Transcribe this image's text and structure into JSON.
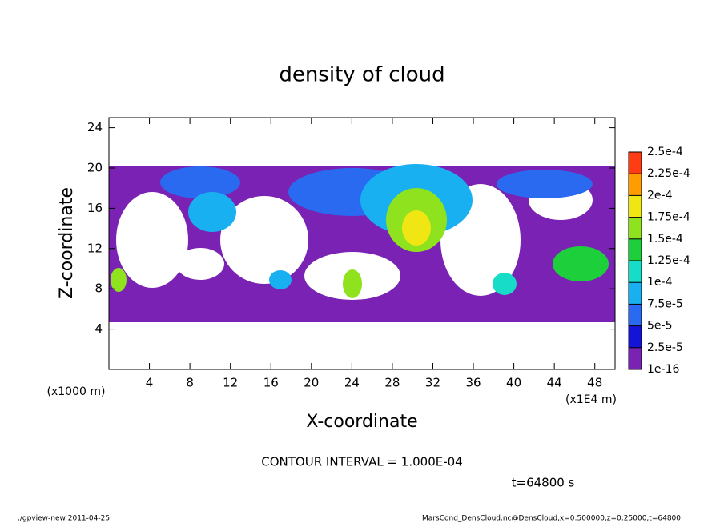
{
  "chart_data": {
    "type": "contour",
    "title": "density of cloud",
    "xlabel": "X-coordinate",
    "ylabel": "Z-coordinate",
    "x_unit_label": "(x1E4 m)",
    "y_unit_label": "(x1000 m)",
    "xlim": [
      0,
      50
    ],
    "xticks": [
      4,
      8,
      12,
      16,
      20,
      24,
      28,
      32,
      36,
      40,
      44,
      48
    ],
    "ylim": [
      0,
      25
    ],
    "yticks": [
      4,
      8,
      12,
      16,
      20,
      24
    ],
    "colorbar": {
      "levels": [
        {
          "value": 1e-16,
          "label": "1e-16"
        },
        {
          "value": 2.5e-05,
          "label": "2.5e-5"
        },
        {
          "value": 5e-05,
          "label": "5e-5"
        },
        {
          "value": 7.5e-05,
          "label": "7.5e-5"
        },
        {
          "value": 0.0001,
          "label": "1e-4"
        },
        {
          "value": 0.000125,
          "label": "1.25e-4"
        },
        {
          "value": 0.00015,
          "label": "1.5e-4"
        },
        {
          "value": 0.000175,
          "label": "1.75e-4"
        },
        {
          "value": 0.0002,
          "label": "2e-4"
        },
        {
          "value": 0.000225,
          "label": "2.25e-4"
        },
        {
          "value": 0.00025,
          "label": "2.5e-4"
        }
      ],
      "colors": [
        "#7a22b4",
        "#1414d8",
        "#2a6af0",
        "#18b0f0",
        "#16dcc8",
        "#1ecf3c",
        "#8ee21e",
        "#f0e614",
        "#ff9c00",
        "#ff3c14"
      ]
    },
    "contour_interval_label": "CONTOUR INTERVAL = 1.000E-04",
    "time_label": "t=64800 s",
    "footer_left": "./gpview-new  2011-04-25",
    "footer_right": "MarsCond_DensCloud.nc@DensCloud,x=0:500000,z=0:25000,t=64800"
  }
}
